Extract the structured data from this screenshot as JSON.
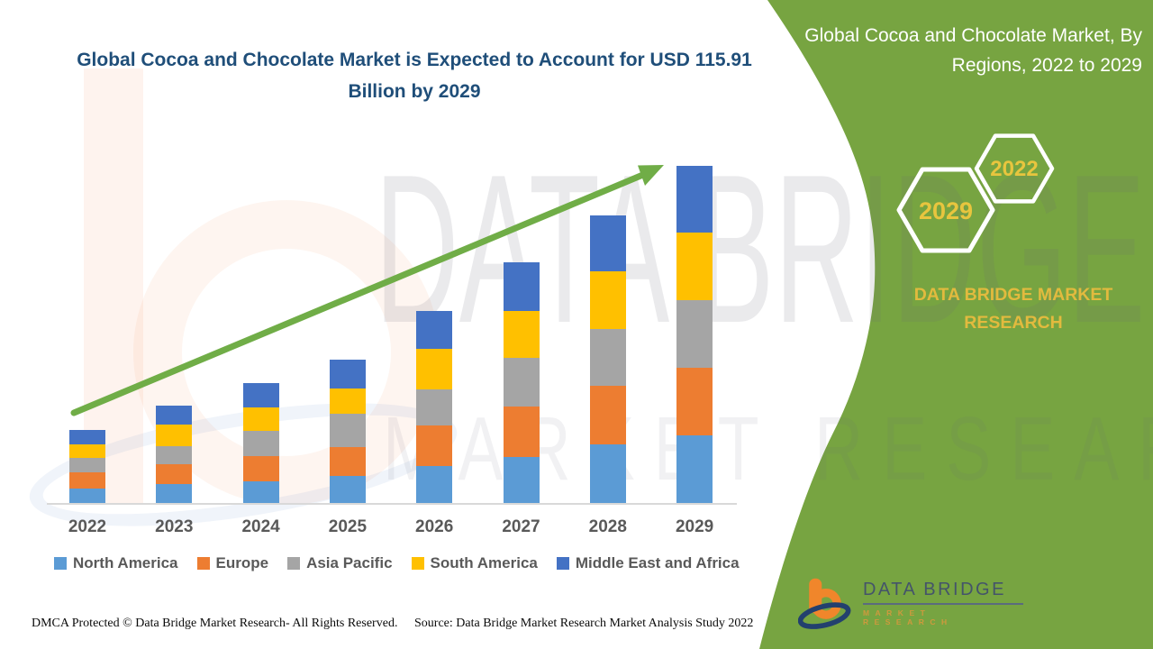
{
  "side_panel": {
    "heading": "Global Cocoa and Chocolate Market, By Regions, 2022 to 2029",
    "hexagons": [
      {
        "label": "2029"
      },
      {
        "label": "2022"
      }
    ],
    "brand_line1": "DATA BRIDGE MARKET",
    "brand_line2": "RESEARCH",
    "panel_color": "#77A441",
    "hex_text_color": "#E8C53E"
  },
  "logo": {
    "name": "DATA BRIDGE",
    "subtitle": "MARKET RESEARCH"
  },
  "watermark": {
    "line1": "DATA BRIDGE",
    "line2": "MARKET RESEARCH"
  },
  "footer": {
    "left": "DMCA Protected © Data Bridge Market Research- All Rights Reserved.",
    "source": "Source: Data Bridge Market Research Market Analysis Study 2022"
  },
  "chart_data": {
    "type": "bar",
    "stacked": true,
    "title": "Global Cocoa and Chocolate Market is Expected to Account for USD 115.91 Billion by 2029",
    "unit": "USD Billion",
    "categories": [
      "2022",
      "2023",
      "2024",
      "2025",
      "2026",
      "2027",
      "2028",
      "2029"
    ],
    "series": [
      {
        "name": "North America",
        "color": "#5B9BD5",
        "values": [
          5.0,
          6.5,
          7.4,
          9.3,
          12.7,
          15.8,
          20.1,
          23.2
        ]
      },
      {
        "name": "Europe",
        "color": "#ED7D31",
        "values": [
          5.6,
          6.8,
          8.7,
          9.9,
          13.9,
          17.4,
          20.1,
          23.2
        ]
      },
      {
        "name": "Asia Pacific",
        "color": "#A5A5A5",
        "values": [
          5.0,
          6.2,
          8.7,
          11.5,
          12.4,
          16.7,
          19.5,
          23.2
        ]
      },
      {
        "name": "South America",
        "color": "#FFC000",
        "values": [
          4.6,
          7.4,
          8.1,
          8.7,
          13.9,
          16.1,
          19.8,
          23.2
        ]
      },
      {
        "name": "Middle East and Africa",
        "color": "#4472C4",
        "values": [
          5.0,
          6.5,
          8.4,
          9.9,
          13.0,
          16.7,
          19.5,
          23.1
        ]
      }
    ],
    "totals_estimated": [
      25.2,
      33.4,
      41.3,
      49.3,
      65.9,
      82.7,
      99.0,
      115.91
    ],
    "ylim": [
      0,
      120
    ],
    "grid": false,
    "y_axis_shown": false,
    "legend_position": "bottom",
    "annotations": [
      "green upward trend arrow from 2022 bar to 2029 bar top"
    ],
    "accent_arrow_color": "#70AD47"
  }
}
